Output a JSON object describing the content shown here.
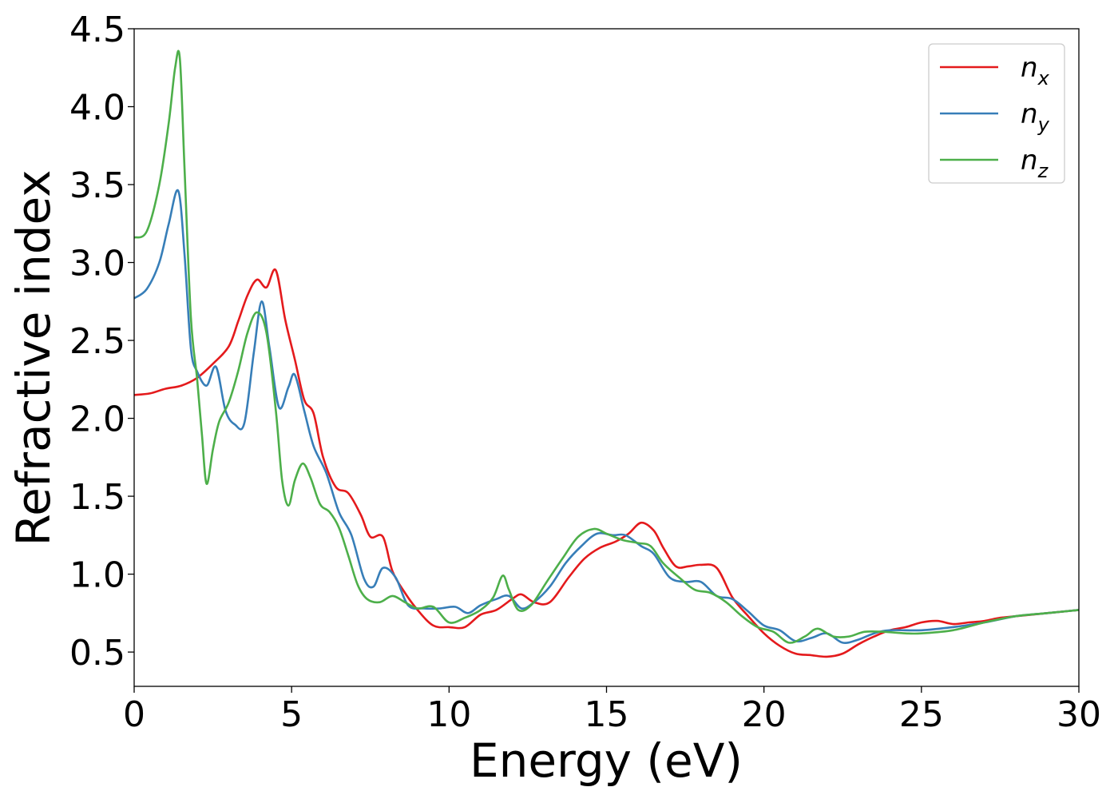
{
  "chart_data": {
    "type": "line",
    "xlabel": "Energy (eV)",
    "ylabel": "Refractive index",
    "xlim": [
      0,
      30
    ],
    "ylim": [
      0.28,
      4.5
    ],
    "xticks": [
      0,
      5,
      10,
      15,
      20,
      25,
      30
    ],
    "xtick_labels": [
      "0",
      "5",
      "10",
      "15",
      "20",
      "25",
      "30"
    ],
    "yticks": [
      0.5,
      1.0,
      1.5,
      2.0,
      2.5,
      3.0,
      3.5,
      4.0,
      4.5
    ],
    "ytick_labels": [
      "0.5",
      "1.0",
      "1.5",
      "2.0",
      "2.5",
      "3.0",
      "3.5",
      "4.0",
      "4.5"
    ],
    "grid": false,
    "legend_position": "top-right",
    "series": [
      {
        "name": "n",
        "subscript": "x",
        "color": "#e41a1c",
        "x": [
          0,
          0.5,
          1.0,
          1.5,
          2.0,
          2.5,
          3.0,
          3.3,
          3.6,
          3.9,
          4.2,
          4.5,
          4.8,
          5.1,
          5.4,
          5.7,
          6.0,
          6.4,
          6.8,
          7.2,
          7.5,
          7.9,
          8.2,
          8.6,
          9.0,
          9.5,
          10.0,
          10.5,
          11.0,
          11.5,
          12.0,
          12.3,
          12.7,
          13.2,
          13.8,
          14.3,
          14.8,
          15.3,
          15.7,
          16.1,
          16.5,
          16.8,
          17.2,
          17.6,
          18.0,
          18.5,
          19.0,
          19.5,
          20.0,
          20.5,
          21.0,
          21.5,
          22.0,
          22.5,
          23.0,
          23.5,
          24.0,
          24.5,
          25.0,
          25.5,
          26.0,
          26.5,
          27.0,
          27.5,
          28.0,
          28.5,
          29.0,
          29.5,
          30.0
        ],
        "y": [
          2.15,
          2.16,
          2.19,
          2.21,
          2.26,
          2.35,
          2.46,
          2.62,
          2.79,
          2.89,
          2.84,
          2.95,
          2.63,
          2.38,
          2.12,
          2.03,
          1.75,
          1.56,
          1.52,
          1.38,
          1.24,
          1.24,
          1.02,
          0.88,
          0.77,
          0.67,
          0.66,
          0.66,
          0.74,
          0.77,
          0.84,
          0.87,
          0.82,
          0.82,
          0.98,
          1.1,
          1.17,
          1.21,
          1.26,
          1.33,
          1.28,
          1.17,
          1.05,
          1.05,
          1.06,
          1.04,
          0.85,
          0.73,
          0.62,
          0.54,
          0.49,
          0.48,
          0.47,
          0.49,
          0.55,
          0.6,
          0.64,
          0.66,
          0.69,
          0.7,
          0.68,
          0.69,
          0.7,
          0.72,
          0.73,
          0.74,
          0.75,
          0.76,
          0.77
        ]
      },
      {
        "name": "n",
        "subscript": "y",
        "color": "#377eb8",
        "x": [
          0,
          0.4,
          0.8,
          1.1,
          1.4,
          1.6,
          1.8,
          2.0,
          2.3,
          2.6,
          2.9,
          3.2,
          3.5,
          3.8,
          4.05,
          4.3,
          4.6,
          4.9,
          5.1,
          5.4,
          5.7,
          6.1,
          6.5,
          6.9,
          7.3,
          7.6,
          7.9,
          8.3,
          8.7,
          9.2,
          9.7,
          10.2,
          10.6,
          11.0,
          11.5,
          11.9,
          12.3,
          12.7,
          13.2,
          13.7,
          14.2,
          14.7,
          15.2,
          15.6,
          16.1,
          16.5,
          17.0,
          17.5,
          18.0,
          18.5,
          19.0,
          19.5,
          20.0,
          20.5,
          21.0,
          21.5,
          22.0,
          22.5,
          23.0,
          23.5,
          24.0,
          25.0,
          26.0,
          27.0,
          28.0,
          29.0,
          30.0
        ],
        "y": [
          2.77,
          2.83,
          3.0,
          3.25,
          3.46,
          3.05,
          2.45,
          2.3,
          2.21,
          2.33,
          2.05,
          1.96,
          1.97,
          2.42,
          2.75,
          2.45,
          2.07,
          2.2,
          2.28,
          2.05,
          1.82,
          1.65,
          1.4,
          1.25,
          0.97,
          0.92,
          1.04,
          0.98,
          0.8,
          0.78,
          0.78,
          0.79,
          0.75,
          0.8,
          0.84,
          0.86,
          0.78,
          0.82,
          0.92,
          1.07,
          1.18,
          1.26,
          1.25,
          1.25,
          1.18,
          1.13,
          0.98,
          0.95,
          0.95,
          0.86,
          0.84,
          0.76,
          0.67,
          0.64,
          0.57,
          0.59,
          0.62,
          0.56,
          0.58,
          0.62,
          0.64,
          0.64,
          0.66,
          0.69,
          0.73,
          0.75,
          0.77
        ]
      },
      {
        "name": "n",
        "subscript": "z",
        "color": "#4daf4a",
        "x": [
          0,
          0.4,
          0.8,
          1.1,
          1.3,
          1.45,
          1.6,
          1.8,
          2.0,
          2.15,
          2.3,
          2.5,
          2.7,
          3.0,
          3.3,
          3.6,
          3.9,
          4.2,
          4.5,
          4.7,
          4.9,
          5.1,
          5.35,
          5.6,
          5.9,
          6.2,
          6.5,
          6.8,
          7.1,
          7.4,
          7.8,
          8.2,
          8.6,
          9.0,
          9.5,
          10.0,
          10.5,
          11.0,
          11.4,
          11.7,
          11.9,
          12.2,
          12.6,
          13.1,
          13.6,
          14.1,
          14.6,
          15.0,
          15.5,
          16.0,
          16.4,
          16.8,
          17.3,
          17.8,
          18.3,
          18.8,
          19.3,
          19.8,
          20.3,
          20.8,
          21.3,
          21.7,
          22.2,
          22.7,
          23.2,
          23.8,
          24.5,
          25.0,
          26.0,
          27.0,
          28.0,
          29.0,
          30.0
        ],
        "y": [
          3.16,
          3.2,
          3.5,
          3.9,
          4.25,
          4.31,
          3.6,
          2.65,
          2.25,
          1.9,
          1.58,
          1.8,
          1.98,
          2.1,
          2.3,
          2.55,
          2.68,
          2.55,
          2.05,
          1.6,
          1.44,
          1.6,
          1.71,
          1.62,
          1.45,
          1.4,
          1.3,
          1.12,
          0.93,
          0.84,
          0.82,
          0.86,
          0.82,
          0.78,
          0.79,
          0.69,
          0.72,
          0.77,
          0.85,
          0.99,
          0.9,
          0.77,
          0.8,
          0.95,
          1.1,
          1.24,
          1.29,
          1.26,
          1.22,
          1.2,
          1.18,
          1.07,
          0.98,
          0.9,
          0.88,
          0.82,
          0.73,
          0.66,
          0.63,
          0.56,
          0.6,
          0.65,
          0.6,
          0.6,
          0.63,
          0.63,
          0.62,
          0.62,
          0.64,
          0.69,
          0.73,
          0.75,
          0.77
        ]
      }
    ]
  }
}
